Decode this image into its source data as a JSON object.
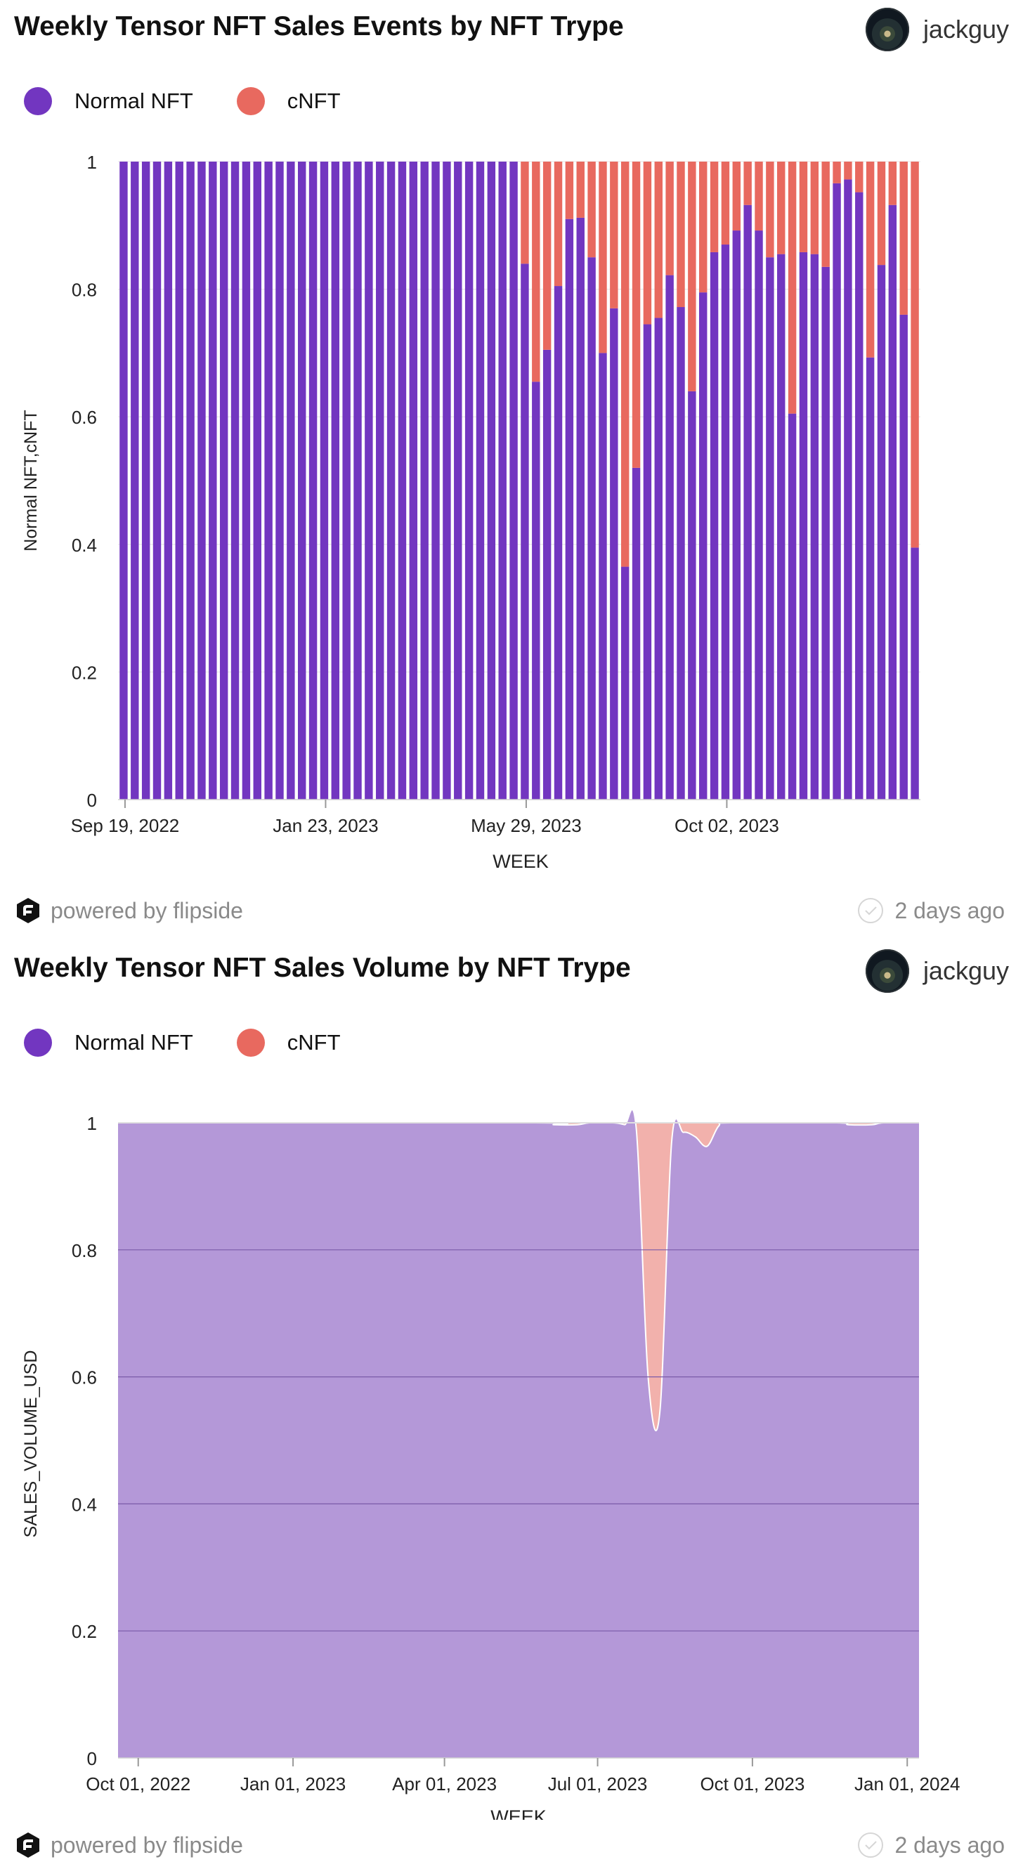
{
  "cards": [
    {
      "title": "Weekly Tensor NFT Sales Events by NFT Trype",
      "author": "jackguy",
      "footer": {
        "powered_by": "powered by flipside",
        "time_ago": "2 days ago"
      },
      "legend": [
        {
          "label": "Normal NFT",
          "color": "#7236c0"
        },
        {
          "label": "cNFT",
          "color": "#e8695f"
        }
      ]
    },
    {
      "title": "Weekly Tensor NFT Sales Volume by NFT Trype",
      "author": "jackguy",
      "footer": {
        "powered_by": "powered by flipside",
        "time_ago": "2 days ago"
      },
      "legend": [
        {
          "label": "Normal NFT",
          "color": "#7236c0"
        },
        {
          "label": "cNFT",
          "color": "#e8695f"
        }
      ]
    }
  ],
  "icons": {
    "avatar": "avatar-icon",
    "flipside": "flipside-logo-icon",
    "check": "check-circle-icon"
  },
  "chart_data": [
    {
      "type": "bar",
      "stacked": true,
      "xlabel": "WEEK",
      "ylabel": "Normal NFT,cNFT",
      "ylim": [
        0,
        1
      ],
      "yticks": [
        "0",
        "0.2",
        "0.4",
        "0.6",
        "0.8",
        "1"
      ],
      "xticks": [
        {
          "label": "Sep 19, 2022",
          "index": 0
        },
        {
          "label": "Jan 23, 2023",
          "index": 18
        },
        {
          "label": "May 29, 2023",
          "index": 36
        },
        {
          "label": "Oct 02, 2023",
          "index": 54
        }
      ],
      "x_start": "Sep 19, 2022",
      "x_step": "1 week",
      "grid": true,
      "series": [
        {
          "name": "Normal NFT",
          "color": "#7236c0",
          "values": [
            1,
            1,
            1,
            1,
            1,
            1,
            1,
            1,
            1,
            1,
            1,
            1,
            1,
            1,
            1,
            1,
            1,
            1,
            1,
            1,
            1,
            1,
            1,
            1,
            1,
            1,
            1,
            1,
            1,
            1,
            1,
            1,
            1,
            1,
            1,
            1,
            0.84,
            0.655,
            0.705,
            0.805,
            0.91,
            0.912,
            0.85,
            0.7,
            0.77,
            0.365,
            0.52,
            0.745,
            0.755,
            0.822,
            0.772,
            0.64,
            0.795,
            0.858,
            0.87,
            0.892,
            0.932,
            0.892,
            0.85,
            0.855,
            0.605,
            0.858,
            0.855,
            0.835,
            0.966,
            0.972,
            0.952,
            0.693,
            0.838,
            0.932,
            0.76,
            0.395
          ]
        },
        {
          "name": "cNFT",
          "color": "#e8695f",
          "values": [
            0,
            0,
            0,
            0,
            0,
            0,
            0,
            0,
            0,
            0,
            0,
            0,
            0,
            0,
            0,
            0,
            0,
            0,
            0,
            0,
            0,
            0,
            0,
            0,
            0,
            0,
            0,
            0,
            0,
            0,
            0,
            0,
            0,
            0,
            0,
            0,
            0.16,
            0.345,
            0.295,
            0.195,
            0.09,
            0.088,
            0.15,
            0.3,
            0.23,
            0.635,
            0.48,
            0.255,
            0.245,
            0.178,
            0.228,
            0.36,
            0.205,
            0.142,
            0.13,
            0.108,
            0.068,
            0.108,
            0.15,
            0.145,
            0.395,
            0.142,
            0.145,
            0.165,
            0.034,
            0.028,
            0.048,
            0.307,
            0.162,
            0.068,
            0.24,
            0.605
          ]
        }
      ]
    },
    {
      "type": "area",
      "stacked": true,
      "normalized": true,
      "xlabel": "WEEK",
      "ylabel": "SALES_VOLUME_USD",
      "ylim": [
        0,
        1
      ],
      "yticks": [
        "0",
        "0.2",
        "0.4",
        "0.6",
        "0.8",
        "1"
      ],
      "xlim": [
        "Sep 19, 2022",
        "Jan 08, 2024"
      ],
      "xticks": [
        "Oct 01, 2022",
        "Jan 01, 2023",
        "Apr 01, 2023",
        "Jul 01, 2023",
        "Oct 01, 2023",
        "Jan 01, 2024"
      ],
      "grid": true,
      "series": [
        {
          "name": "Normal NFT",
          "color": "#b498d8",
          "points": [
            [
              "Sep 19, 2022",
              1
            ],
            [
              "May 22, 2023",
              1
            ],
            [
              "Jun 05, 2023",
              0.997
            ],
            [
              "Jun 19, 2023",
              0.997
            ],
            [
              "Jun 26, 2023",
              1
            ],
            [
              "Jul 10, 2023",
              1
            ],
            [
              "Jul 17, 2023",
              0.997
            ],
            [
              "Jul 24, 2023",
              0.99
            ],
            [
              "Jul 31, 2023",
              0.6
            ],
            [
              "Aug 07, 2023",
              0.545
            ],
            [
              "Aug 14, 2023",
              0.97
            ],
            [
              "Aug 21, 2023",
              0.985
            ],
            [
              "Aug 28, 2023",
              0.978
            ],
            [
              "Sep 04, 2023",
              0.963
            ],
            [
              "Sep 11, 2023",
              0.995
            ],
            [
              "Sep 18, 2023",
              1
            ],
            [
              "Nov 20, 2023",
              1
            ],
            [
              "Nov 27, 2023",
              0.997
            ],
            [
              "Dec 11, 2023",
              0.997
            ],
            [
              "Dec 18, 2023",
              1
            ],
            [
              "Jan 08, 2024",
              1
            ]
          ]
        },
        {
          "name": "cNFT",
          "color": "#f2b1ac",
          "stacked_to": 1
        }
      ]
    }
  ]
}
